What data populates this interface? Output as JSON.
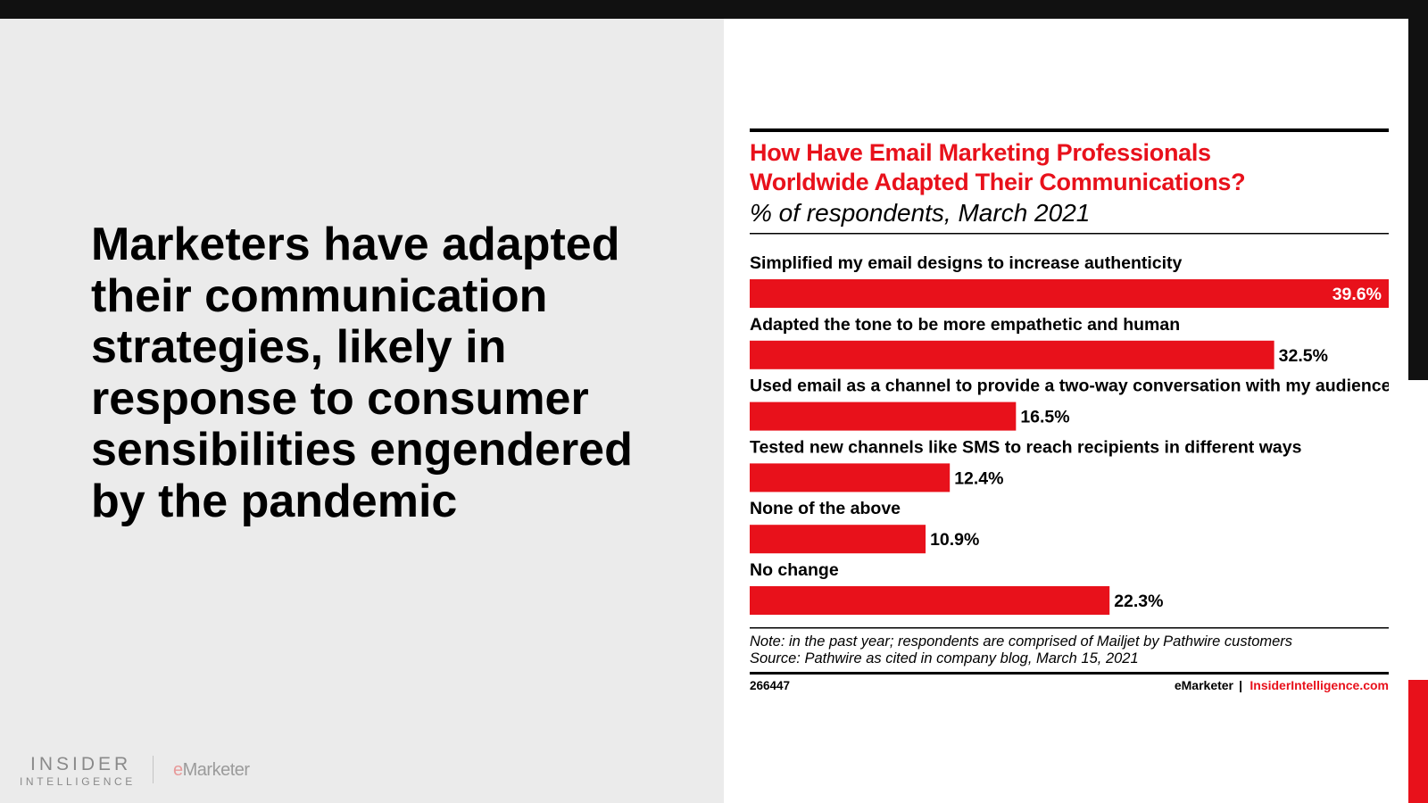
{
  "slide": {
    "headline": "Marketers have adapted their communication strategies, likely in response to consumer sensibilities engendered by the pandemic",
    "logo_insider": "INSIDER",
    "logo_intelligence": "INTELLIGENCE",
    "logo_emarketer_e": "e",
    "logo_emarketer_rest": "Marketer"
  },
  "colors": {
    "bar": "#e8111b",
    "title": "#e8111b",
    "text": "#000000",
    "left_panel_bg": "#ebebeb"
  },
  "chart_data": {
    "type": "bar",
    "orientation": "horizontal",
    "title": "How Have Email Marketing Professionals Worldwide Adapted Their Communications?",
    "title_lines": [
      "How Have Email Marketing Professionals",
      "Worldwide Adapted Their Communications?"
    ],
    "subtitle": "% of respondents, March 2021",
    "categories": [
      "Simplified my email designs to increase authenticity",
      "Adapted the tone to be more empathetic and human",
      "Used email as a channel to provide a two-way conversation with my audience",
      "Tested new channels like SMS to reach recipients in different ways",
      "None of the above",
      "No change"
    ],
    "values": [
      39.6,
      32.5,
      16.5,
      12.4,
      10.9,
      22.3
    ],
    "value_labels": [
      "39.6%",
      "32.5%",
      "16.5%",
      "12.4%",
      "10.9%",
      "22.3%"
    ],
    "xlim": [
      0,
      39.6
    ],
    "grid": false,
    "note": "Note: in the past year; respondents are comprised of Mailjet by Pathwire customers",
    "source": "Source: Pathwire as cited in company blog, March 15, 2021",
    "chart_id": "266447",
    "brand": "eMarketer",
    "brand_separator": "|",
    "brand_site": "InsiderIntelligence.com"
  }
}
